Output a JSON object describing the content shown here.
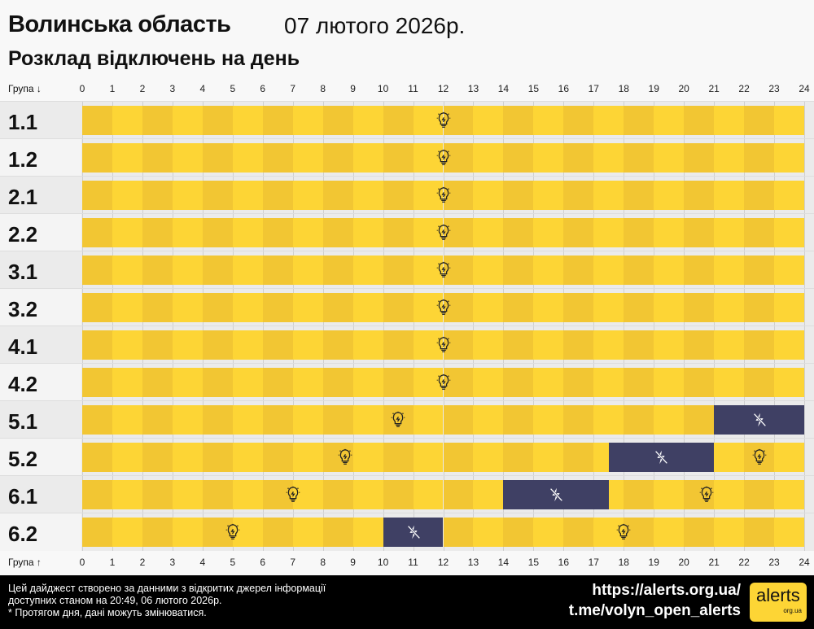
{
  "header": {
    "title": "Волинська область",
    "date": "07 лютого 2026р.",
    "subtitle": "Розклад відключень на день"
  },
  "chart_data": {
    "type": "timeline",
    "top_axis_label": "Група ↓",
    "bottom_axis_label": "Група ↑",
    "x_ticks": [
      "0",
      "1",
      "2",
      "3",
      "4",
      "5",
      "6",
      "7",
      "8",
      "9",
      "10",
      "11",
      "12",
      "13",
      "14",
      "15",
      "16",
      "17",
      "18",
      "19",
      "20",
      "21",
      "22",
      "23",
      "24"
    ],
    "xlim": [
      0,
      24
    ],
    "colors": {
      "power_on_a": "#f2c633",
      "power_on_b": "#fdd535",
      "power_off": "#3f4064"
    },
    "groups": [
      {
        "name": "1.1",
        "outages": []
      },
      {
        "name": "1.2",
        "outages": []
      },
      {
        "name": "2.1",
        "outages": []
      },
      {
        "name": "2.2",
        "outages": []
      },
      {
        "name": "3.1",
        "outages": []
      },
      {
        "name": "3.2",
        "outages": []
      },
      {
        "name": "4.1",
        "outages": []
      },
      {
        "name": "4.2",
        "outages": []
      },
      {
        "name": "5.1",
        "outages": [
          [
            21,
            24
          ]
        ]
      },
      {
        "name": "5.2",
        "outages": [
          [
            17.5,
            21
          ]
        ]
      },
      {
        "name": "6.1",
        "outages": [
          [
            14,
            17.5
          ]
        ]
      },
      {
        "name": "6.2",
        "outages": [
          [
            10,
            12
          ]
        ]
      }
    ]
  },
  "footer": {
    "note1": "Цей дайджест створено за данними з відкритих джерел інформації",
    "note2": "доступних станом на 20:49, 06 лютого 2026р.",
    "note3": "* Протягом дня, дані можуть змінюватися.",
    "link1": "https://alerts.org.ua/",
    "link2": "t.me/volyn_open_alerts",
    "logo_text": "alerts",
    "logo_sub": "org.ua"
  }
}
